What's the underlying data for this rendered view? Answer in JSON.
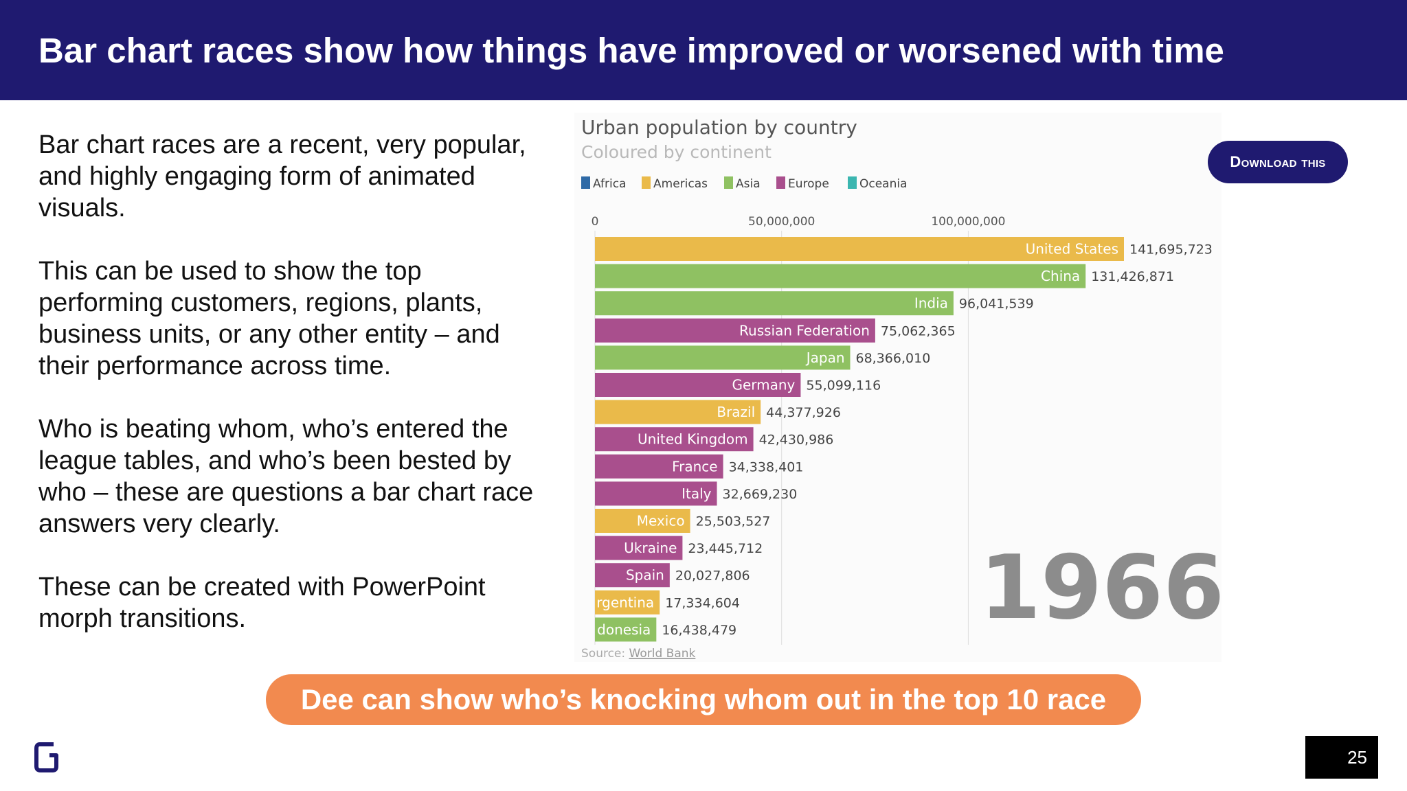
{
  "slide": {
    "title": "Bar chart races show how things have improved or worsened with time",
    "paragraphs": [
      "Bar chart races are a recent, very popular, and highly engaging form of animated visuals.",
      "This can be used to show the top performing customers, regions, plants, business units, or any other entity – and their performance across time.",
      "Who is beating whom, who’s entered the league tables, and who’s been bested by who – these are questions a bar chart race answers very clearly.",
      "These can be created with PowerPoint morph transitions."
    ],
    "download_label": "Download this",
    "callout": "Dee can show who’s knocking whom out in the top 10 race",
    "page_number": "25",
    "logo_icon": "brand-g-logo-icon"
  },
  "chart_data": {
    "type": "bar",
    "orientation": "horizontal",
    "title": "Urban population by country",
    "subtitle": "Coloured by continent",
    "source_prefix": "Source: ",
    "source_link": "World Bank",
    "year_label": "1966",
    "xlim": [
      0,
      141695723
    ],
    "x_ticks": [
      0,
      50000000,
      100000000
    ],
    "x_tick_labels": [
      "0",
      "50,000,000",
      "100,000,000"
    ],
    "grid": true,
    "legend_position": "top-left",
    "legend": [
      {
        "name": "Africa",
        "color": "#2f6aa6"
      },
      {
        "name": "Americas",
        "color": "#eaba4a"
      },
      {
        "name": "Asia",
        "color": "#8fc162"
      },
      {
        "name": "Europe",
        "color": "#a94f8d"
      },
      {
        "name": "Oceania",
        "color": "#3bb6b0"
      }
    ],
    "bars": [
      {
        "label": "United States",
        "value": 141695723,
        "value_label": "141,695,723",
        "continent": "Americas"
      },
      {
        "label": "China",
        "value": 131426871,
        "value_label": "131,426,871",
        "continent": "Asia"
      },
      {
        "label": "India",
        "value": 96041539,
        "value_label": "96,041,539",
        "continent": "Asia"
      },
      {
        "label": "Russian Federation",
        "value": 75062365,
        "value_label": "75,062,365",
        "continent": "Europe"
      },
      {
        "label": "Japan",
        "value": 68366010,
        "value_label": "68,366,010",
        "continent": "Asia"
      },
      {
        "label": "Germany",
        "value": 55099116,
        "value_label": "55,099,116",
        "continent": "Europe"
      },
      {
        "label": "Brazil",
        "value": 44377926,
        "value_label": "44,377,926",
        "continent": "Americas"
      },
      {
        "label": "United Kingdom",
        "value": 42430986,
        "value_label": "42,430,986",
        "continent": "Europe"
      },
      {
        "label": "France",
        "value": 34338401,
        "value_label": "34,338,401",
        "continent": "Europe"
      },
      {
        "label": "Italy",
        "value": 32669230,
        "value_label": "32,669,230",
        "continent": "Europe"
      },
      {
        "label": "Mexico",
        "value": 25503527,
        "value_label": "25,503,527",
        "continent": "Americas"
      },
      {
        "label": "Ukraine",
        "value": 23445712,
        "value_label": "23,445,712",
        "continent": "Europe"
      },
      {
        "label": "Spain",
        "value": 20027806,
        "value_label": "20,027,806",
        "continent": "Europe"
      },
      {
        "label": "rgentina",
        "value": 17334604,
        "value_label": "17,334,604",
        "continent": "Americas"
      },
      {
        "label": "donesia",
        "value": 16438479,
        "value_label": "16,438,479",
        "continent": "Asia"
      }
    ]
  },
  "colors": {
    "header_bg": "#1f1a70",
    "callout_bg": "#f28a4f",
    "year_text": "#8c8c8c"
  }
}
